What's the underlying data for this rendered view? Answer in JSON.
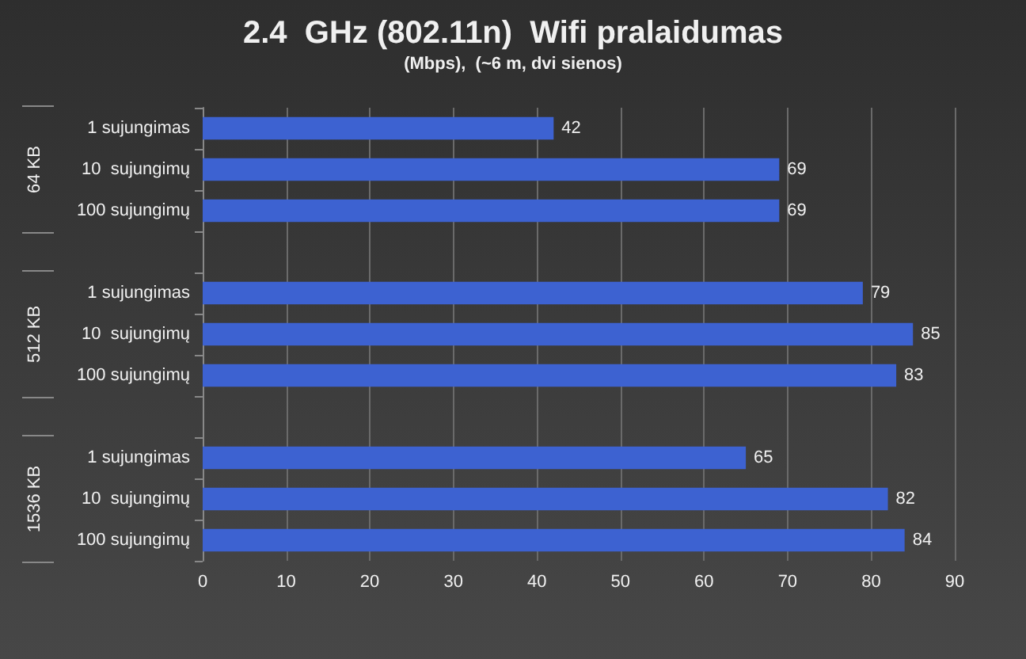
{
  "chart_data": {
    "type": "bar",
    "orientation": "horizontal",
    "title": "2.4  GHz (802.11n)  Wifi pralaidumas",
    "subtitle": "(Mbps),  (~6 m, dvi sienos)",
    "categories": [
      "1 sujungimas",
      "10  sujungimų",
      "100 sujungimų",
      null,
      "1 sujungimas",
      "10  sujungimų",
      "100 sujungimų",
      null,
      "1 sujungimas",
      "10  sujungimų",
      "100 sujungimų"
    ],
    "series": [
      {
        "color": "#3d62d1",
        "values": [
          42,
          69,
          69,
          null,
          79,
          85,
          83,
          null,
          65,
          82,
          84
        ]
      }
    ],
    "annotations": [
      "64 KB",
      "512 KB",
      "1536 KB"
    ],
    "xlim": [
      0,
      90
    ],
    "xticks": [
      0,
      10,
      20,
      30,
      40,
      50,
      60,
      70,
      80,
      90
    ],
    "grid": "x",
    "data_labels": true
  }
}
